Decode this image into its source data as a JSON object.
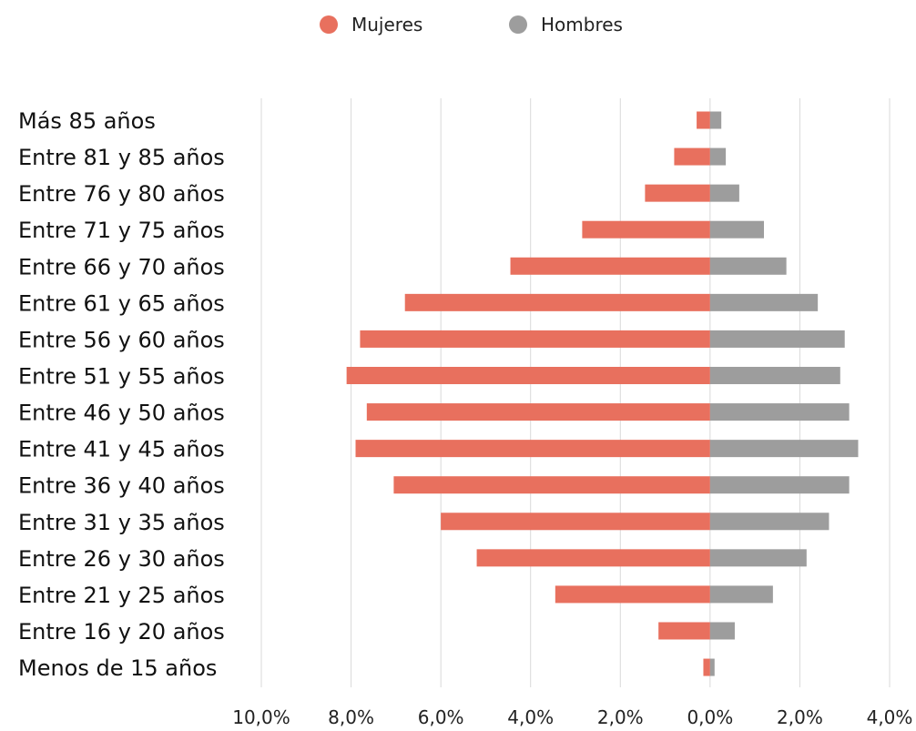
{
  "chart_data": {
    "type": "bar",
    "orientation": "horizontal",
    "layout": "population-pyramid",
    "title": "",
    "xlabel": "",
    "ylabel": "",
    "xlim": [
      -10.0,
      4.0
    ],
    "grid": true,
    "legend_position": "top-center",
    "x_ticks": [
      -10,
      -8,
      -6,
      -4,
      -2,
      0,
      2,
      4
    ],
    "x_tick_labels": [
      "10,0%",
      "8,0%",
      "6,0%",
      "4,0%",
      "2,0%",
      "0,0%",
      "2,0%",
      "4,0%"
    ],
    "categories": [
      "Más 85 años",
      "Entre 81 y 85 años",
      "Entre 76 y 80 años",
      "Entre 71 y 75 años",
      "Entre 66 y 70 años",
      "Entre 61 y 65 años",
      "Entre 56 y 60 años",
      "Entre 51 y 55 años",
      "Entre 46 y 50 años",
      "Entre 41 y 45 años",
      "Entre 36 y 40 años",
      "Entre 31 y 35 años",
      "Entre 26 y 30 años",
      "Entre 21 y 25 años",
      "Entre 16 y 20 años",
      "Menos de 15 años"
    ],
    "series": [
      {
        "name": "Mujeres",
        "color": "#e8705e",
        "values": [
          -0.3,
          -0.8,
          -1.45,
          -2.85,
          -4.45,
          -6.8,
          -7.8,
          -8.1,
          -7.65,
          -7.9,
          -7.05,
          -6.0,
          -5.2,
          -3.45,
          -1.15,
          -0.15
        ]
      },
      {
        "name": "Hombres",
        "color": "#9d9d9d",
        "values": [
          0.25,
          0.35,
          0.65,
          1.2,
          1.7,
          2.4,
          3.0,
          2.9,
          3.1,
          3.3,
          3.1,
          2.65,
          2.15,
          1.4,
          0.55,
          0.1
        ]
      }
    ]
  }
}
